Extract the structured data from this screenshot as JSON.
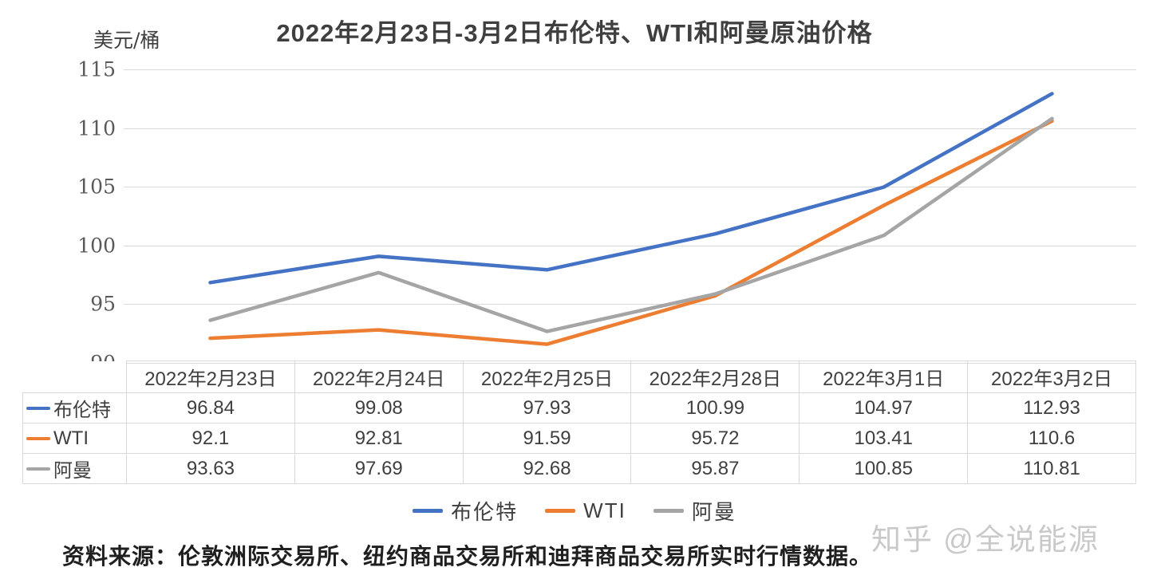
{
  "title": "2022年2月23日-3月2日布伦特、WTI和阿曼原油价格",
  "y_axis_unit": "美元/桶",
  "source_note": "资料来源：伦敦洲际交易所、纽约商品交易所和迪拜商品交易所实时行情数据。",
  "watermark": "知乎 @全说能源",
  "colors": {
    "brent": "#4472c4",
    "wti": "#ed7d31",
    "oman": "#a5a5a5",
    "grid": "#d9d9d9",
    "axis_text": "#595959"
  },
  "chart_data": {
    "type": "line",
    "title": "2022年2月23日-3月2日布伦特、WTI和阿曼原油价格",
    "ylabel": "美元/桶",
    "xlabel": "",
    "ylim": [
      90,
      115
    ],
    "yticks": [
      90,
      95,
      100,
      105,
      110,
      115
    ],
    "grid": true,
    "legend_position": "bottom",
    "categories": [
      "2022年2月23日",
      "2022年2月24日",
      "2022年2月25日",
      "2022年2月28日",
      "2022年3月1日",
      "2022年3月2日"
    ],
    "series": [
      {
        "key": "brent",
        "name": "布伦特",
        "values": [
          96.84,
          99.08,
          97.93,
          100.99,
          104.97,
          112.93
        ],
        "display": [
          "96.84",
          "99.08",
          "97.93",
          "100.99",
          "104.97",
          "112.93"
        ]
      },
      {
        "key": "wti",
        "name": "WTI",
        "values": [
          92.1,
          92.81,
          91.59,
          95.72,
          103.41,
          110.6
        ],
        "display": [
          "92.1",
          "92.81",
          "91.59",
          "95.72",
          "103.41",
          "110.6"
        ]
      },
      {
        "key": "oman",
        "name": "阿曼",
        "values": [
          93.63,
          97.69,
          92.68,
          95.87,
          100.85,
          110.81
        ],
        "display": [
          "93.63",
          "97.69",
          "92.68",
          "95.87",
          "100.85",
          "110.81"
        ]
      }
    ]
  }
}
